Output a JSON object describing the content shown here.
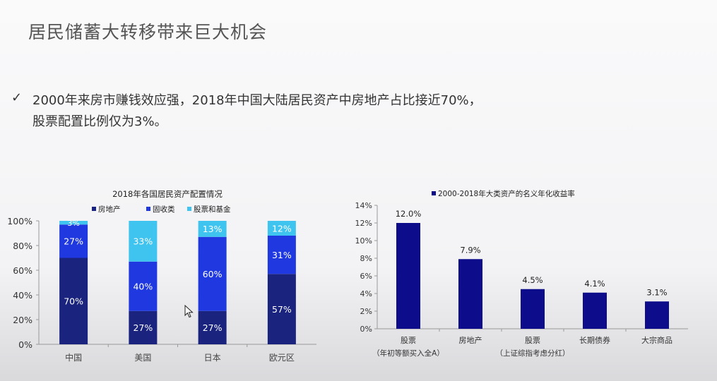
{
  "slide": {
    "title": "居民储蓄大转移带来巨大机会",
    "bullet_icon": "check-mark-icon",
    "bullet_line1": "2000年来房市赚钱效应强，2018年中国大陆居民资产中房地产占比接近70%，",
    "bullet_line2": "股票配置比例仅为3%。"
  },
  "chart_data": [
    {
      "type": "bar",
      "stacked": true,
      "title": "2018年各国居民资产配置情况",
      "categories": [
        "中国",
        "美国",
        "日本",
        "欧元区"
      ],
      "series": [
        {
          "name": "房地产",
          "values": [
            70,
            27,
            27,
            57
          ],
          "labels": [
            "70%",
            "27%",
            "27%",
            "57%"
          ],
          "color": "#1a237e"
        },
        {
          "name": "固收类",
          "values": [
            27,
            40,
            60,
            31
          ],
          "labels": [
            "27%",
            "40%",
            "60%",
            "31%"
          ],
          "color": "#1f38e0"
        },
        {
          "name": "股票和基金",
          "values": [
            3,
            33,
            13,
            12
          ],
          "labels": [
            "3%",
            "33%",
            "13%",
            "12%"
          ],
          "color": "#3fc3ef"
        }
      ],
      "ylim": [
        0,
        100
      ],
      "yticks": [
        "0%",
        "20%",
        "40%",
        "60%",
        "80%",
        "100%"
      ],
      "legend_position": "top",
      "grid": false
    },
    {
      "type": "bar",
      "title": "",
      "legend": "2000-2018年大类资产的名义年化收益率",
      "categories": [
        "股票",
        "房地产",
        "股票",
        "长期债券",
        "大宗商品"
      ],
      "subcategories": [
        "（年初等额买入全A）",
        "",
        "（上证综指考虑分红）",
        "",
        ""
      ],
      "values": [
        12.0,
        7.9,
        4.5,
        4.1,
        3.1
      ],
      "labels": [
        "12.0%",
        "7.9%",
        "4.5%",
        "4.1%",
        "3.1%"
      ],
      "color": "#0d0d8c",
      "ylim": [
        0,
        14
      ],
      "yticks": [
        "0%",
        "2%",
        "4%",
        "6%",
        "8%",
        "10%",
        "12%",
        "14%"
      ],
      "legend_position": "top",
      "grid": false
    }
  ]
}
